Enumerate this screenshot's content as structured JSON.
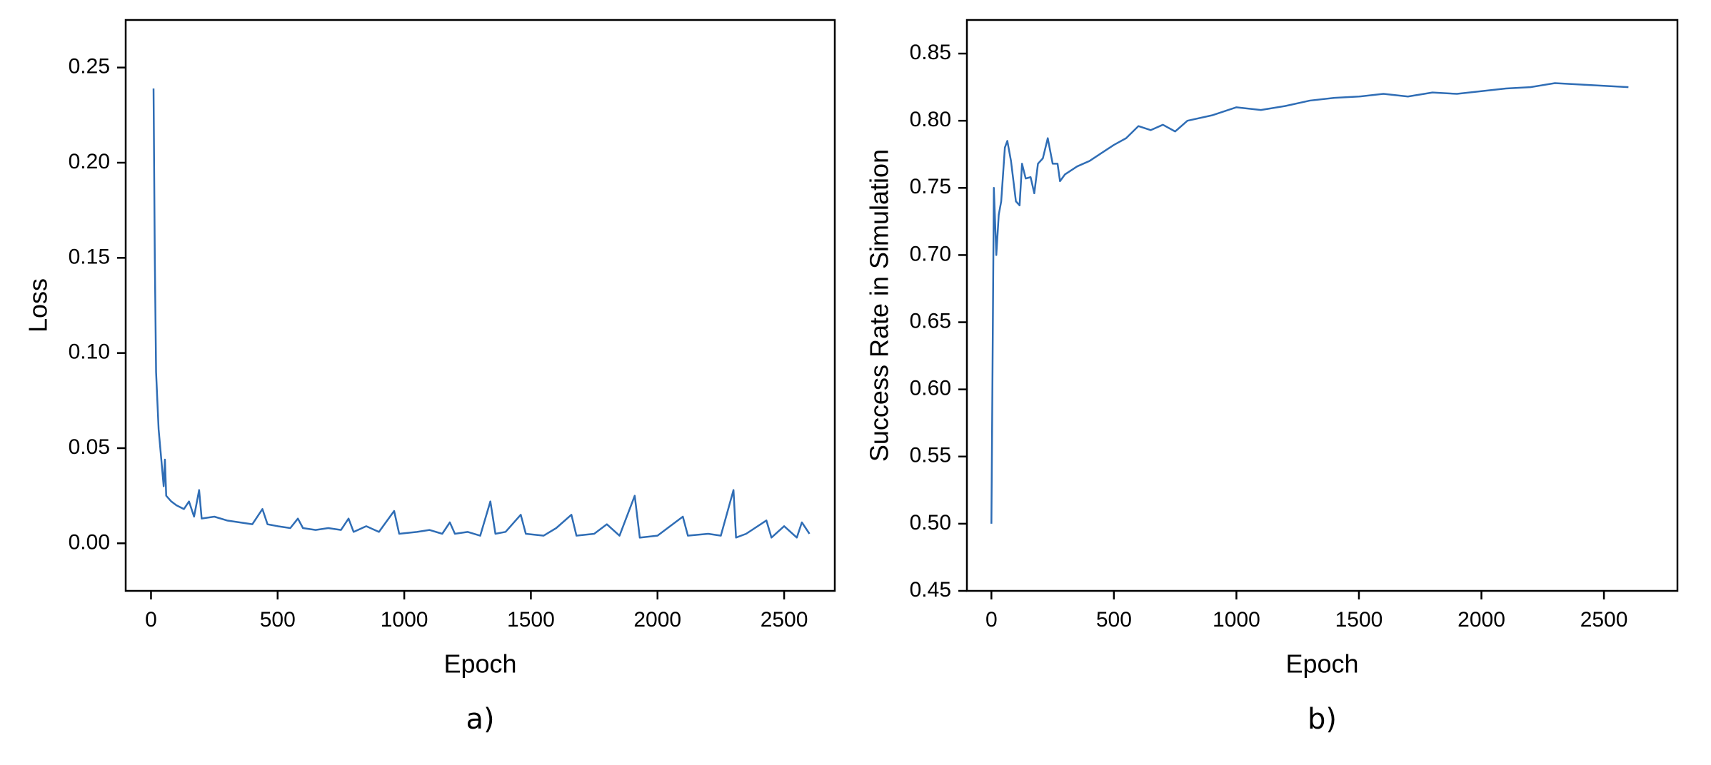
{
  "chart_data": [
    {
      "type": "line",
      "caption": "a)",
      "x_label": "Epoch",
      "y_label": "Loss",
      "xlim": [
        -100,
        2700
      ],
      "xticks": [
        0,
        500,
        1000,
        1500,
        2000,
        2500
      ],
      "ylim": [
        -0.025,
        0.275
      ],
      "yticks": [
        {
          "value": 0,
          "label": "0.00"
        },
        0.05,
        {
          "value": 0.1,
          "label": "0.10"
        },
        0.15,
        {
          "value": 0.2,
          "label": "0.20"
        },
        0.25
      ],
      "series": [
        {
          "color": "#2f6db5",
          "x": [
            10,
            15,
            20,
            30,
            40,
            50,
            55,
            60,
            80,
            100,
            130,
            150,
            170,
            190,
            200,
            250,
            300,
            350,
            400,
            440,
            460,
            500,
            550,
            580,
            600,
            650,
            700,
            750,
            780,
            800,
            850,
            900,
            960,
            980,
            1050,
            1100,
            1150,
            1180,
            1200,
            1250,
            1300,
            1340,
            1360,
            1400,
            1460,
            1480,
            1550,
            1600,
            1660,
            1680,
            1750,
            1800,
            1850,
            1910,
            1930,
            2000,
            2060,
            2100,
            2120,
            2200,
            2250,
            2300,
            2310,
            2350,
            2430,
            2450,
            2500,
            2550,
            2570,
            2600
          ],
          "values": [
            0.239,
            0.15,
            0.09,
            0.06,
            0.045,
            0.03,
            0.044,
            0.025,
            0.022,
            0.02,
            0.018,
            0.022,
            0.014,
            0.028,
            0.013,
            0.014,
            0.012,
            0.011,
            0.01,
            0.018,
            0.01,
            0.009,
            0.008,
            0.013,
            0.008,
            0.007,
            0.008,
            0.007,
            0.013,
            0.006,
            0.009,
            0.006,
            0.017,
            0.005,
            0.006,
            0.007,
            0.005,
            0.011,
            0.005,
            0.006,
            0.004,
            0.022,
            0.005,
            0.006,
            0.015,
            0.005,
            0.004,
            0.008,
            0.015,
            0.004,
            0.005,
            0.01,
            0.004,
            0.025,
            0.003,
            0.004,
            0.01,
            0.014,
            0.004,
            0.005,
            0.004,
            0.028,
            0.003,
            0.005,
            0.012,
            0.003,
            0.009,
            0.003,
            0.011,
            0.005
          ]
        }
      ]
    },
    {
      "type": "line",
      "caption": "b)",
      "x_label": "Epoch",
      "y_label": "Success Rate in Simulation",
      "xlim": [
        -100,
        2800
      ],
      "xticks": [
        0,
        500,
        1000,
        1500,
        2000,
        2500
      ],
      "ylim": [
        0.45,
        0.875
      ],
      "yticks": [
        0.45,
        {
          "value": 0.5,
          "label": "0.50"
        },
        0.55,
        {
          "value": 0.6,
          "label": "0.60"
        },
        0.65,
        {
          "value": 0.7,
          "label": "0.70"
        },
        0.75,
        {
          "value": 0.8,
          "label": "0.80"
        },
        0.85
      ],
      "series": [
        {
          "color": "#2f6db5",
          "x": [
            0,
            10,
            20,
            30,
            40,
            55,
            65,
            80,
            100,
            115,
            125,
            140,
            160,
            175,
            190,
            210,
            230,
            250,
            270,
            280,
            300,
            350,
            400,
            450,
            500,
            550,
            600,
            650,
            700,
            750,
            800,
            900,
            1000,
            1100,
            1200,
            1300,
            1400,
            1500,
            1600,
            1700,
            1800,
            1900,
            2000,
            2100,
            2200,
            2300,
            2400,
            2500,
            2600
          ],
          "values": [
            0.5,
            0.75,
            0.7,
            0.73,
            0.74,
            0.78,
            0.785,
            0.77,
            0.74,
            0.737,
            0.768,
            0.757,
            0.758,
            0.746,
            0.768,
            0.772,
            0.787,
            0.768,
            0.768,
            0.755,
            0.76,
            0.766,
            0.77,
            0.776,
            0.782,
            0.787,
            0.796,
            0.793,
            0.797,
            0.792,
            0.8,
            0.804,
            0.81,
            0.808,
            0.811,
            0.815,
            0.817,
            0.818,
            0.82,
            0.818,
            0.821,
            0.82,
            0.822,
            0.824,
            0.825,
            0.828,
            0.827,
            0.826,
            0.825
          ]
        }
      ]
    }
  ]
}
